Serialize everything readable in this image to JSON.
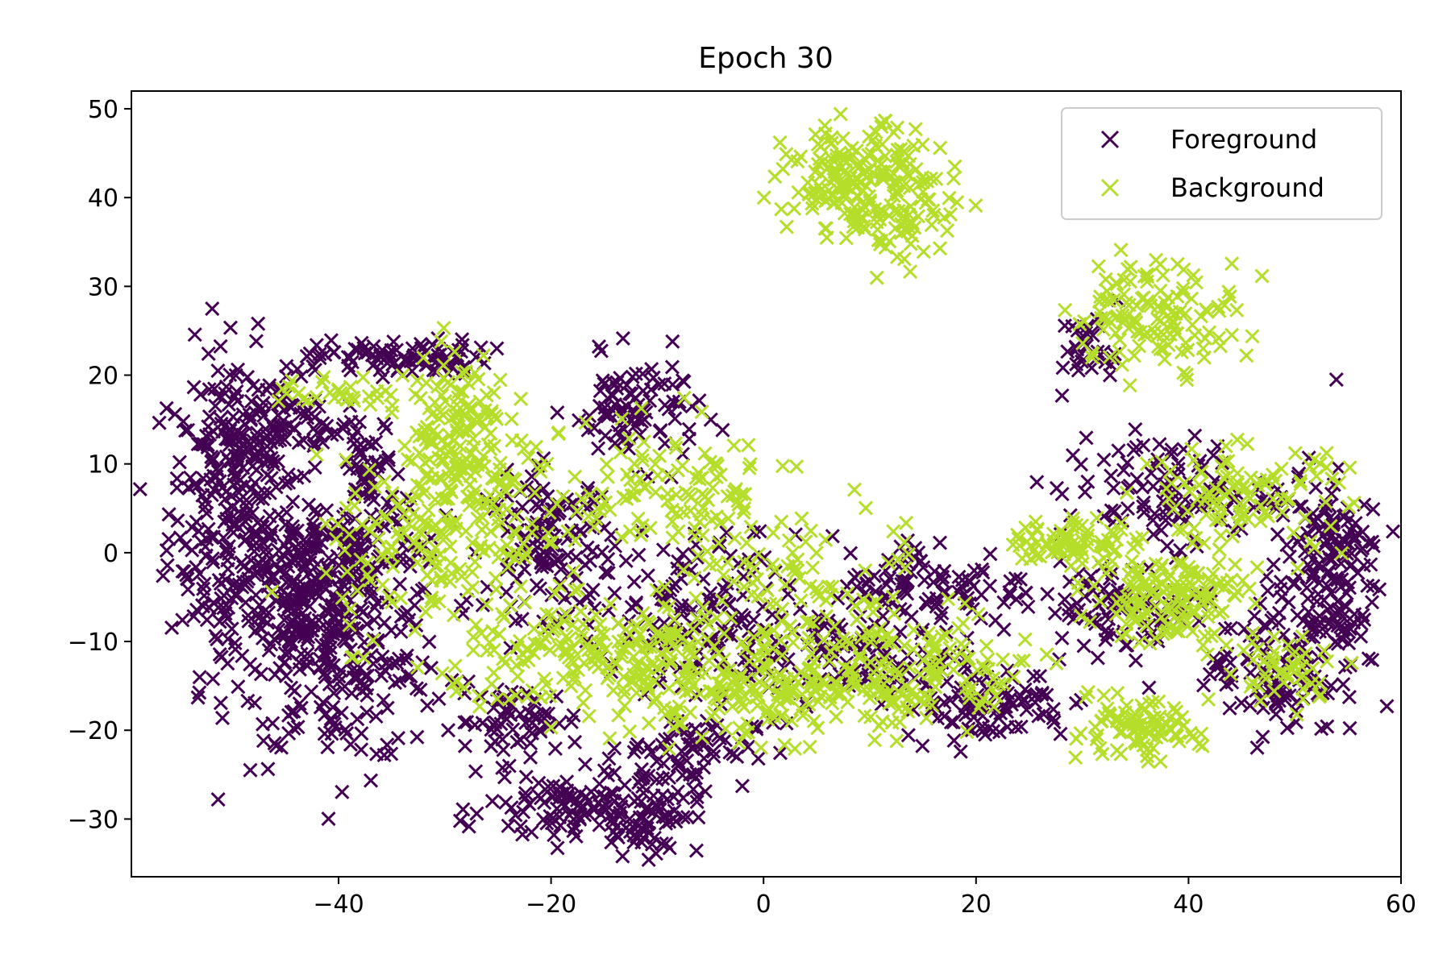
{
  "chart_data": {
    "type": "scatter",
    "title": "Epoch 30",
    "xlabel": "",
    "ylabel": "",
    "xlim": [
      -59.5,
      60
    ],
    "ylim": [
      -36.5,
      52
    ],
    "xticks": [
      -40,
      -20,
      0,
      20,
      40,
      60
    ],
    "yticks": [
      -30,
      -20,
      -10,
      0,
      10,
      20,
      30,
      40,
      50
    ],
    "xtick_labels": [
      "−40",
      "−20",
      "0",
      "20",
      "40",
      "60"
    ],
    "ytick_labels": [
      "−30",
      "−20",
      "−10",
      "0",
      "10",
      "20",
      "30",
      "40",
      "50"
    ],
    "grid": false,
    "legend_position": "top-right",
    "marker": "x",
    "series": [
      {
        "name": "Foreground",
        "color": "#440154",
        "clusters": [
          {
            "x": -50,
            "y": 5,
            "sx": 3,
            "sy": 9,
            "n": 260
          },
          {
            "x": -46,
            "y": 14,
            "sx": 4,
            "sy": 3,
            "n": 110
          },
          {
            "x": -40,
            "y": -10,
            "sx": 5,
            "sy": 7,
            "n": 300
          },
          {
            "x": -44,
            "y": -5,
            "sx": 3,
            "sy": 4,
            "n": 110
          },
          {
            "x": -34,
            "y": 22,
            "sx": 4,
            "sy": 1,
            "n": 90
          },
          {
            "x": -37,
            "y": 9,
            "sx": 1.5,
            "sy": 3,
            "n": 45
          },
          {
            "x": -40,
            "y": 1,
            "sx": 4,
            "sy": 2,
            "n": 80
          },
          {
            "x": -23,
            "y": -19,
            "sx": 3,
            "sy": 2,
            "n": 60
          },
          {
            "x": -20,
            "y": 1,
            "sx": 3,
            "sy": 4,
            "n": 130
          },
          {
            "x": -12,
            "y": 16,
            "sx": 3,
            "sy": 3,
            "n": 90
          },
          {
            "x": -18,
            "y": -29,
            "sx": 4,
            "sy": 2,
            "n": 100
          },
          {
            "x": -11,
            "y": -29,
            "sx": 2.5,
            "sy": 2.5,
            "n": 70
          },
          {
            "x": -7,
            "y": -22,
            "sx": 3,
            "sy": 2,
            "n": 60
          },
          {
            "x": -7,
            "y": -6,
            "sx": 5,
            "sy": 4,
            "n": 110
          },
          {
            "x": 5,
            "y": -12,
            "sx": 8,
            "sy": 3,
            "n": 140
          },
          {
            "x": 16,
            "y": -4,
            "sx": 5,
            "sy": 3,
            "n": 110
          },
          {
            "x": 21,
            "y": -17,
            "sx": 4,
            "sy": 2,
            "n": 90
          },
          {
            "x": 31,
            "y": -6,
            "sx": 3,
            "sy": 2,
            "n": 40
          },
          {
            "x": 31,
            "y": 23,
            "sx": 1.5,
            "sy": 2,
            "n": 30
          },
          {
            "x": 38,
            "y": 7,
            "sx": 5,
            "sy": 3,
            "n": 110
          },
          {
            "x": 53,
            "y": -2,
            "sx": 2.5,
            "sy": 6,
            "n": 170
          },
          {
            "x": 48,
            "y": -13,
            "sx": 3,
            "sy": 4,
            "n": 110
          },
          {
            "x": 36,
            "y": -6,
            "sx": 3,
            "sy": 3,
            "n": 50
          }
        ]
      },
      {
        "name": "Background",
        "color": "#b5de2b",
        "clusters": [
          {
            "x": -29,
            "y": 13,
            "sx": 2.5,
            "sy": 5,
            "n": 160
          },
          {
            "x": -40,
            "y": 18,
            "sx": 3,
            "sy": 1,
            "n": 30
          },
          {
            "x": -32,
            "y": 0,
            "sx": 5,
            "sy": 5,
            "n": 130
          },
          {
            "x": -15,
            "y": -12,
            "sx": 7,
            "sy": 3,
            "n": 200
          },
          {
            "x": 0,
            "y": -15,
            "sx": 6,
            "sy": 3,
            "n": 170
          },
          {
            "x": 14,
            "y": -14,
            "sx": 6,
            "sy": 3,
            "n": 130
          },
          {
            "x": -8,
            "y": 7,
            "sx": 5,
            "sy": 4,
            "n": 110
          },
          {
            "x": 2,
            "y": -4,
            "sx": 6,
            "sy": 5,
            "n": 100
          },
          {
            "x": 9,
            "y": 42,
            "sx": 3.5,
            "sy": 3,
            "n": 180
          },
          {
            "x": 14,
            "y": 38,
            "sx": 2.5,
            "sy": 3,
            "n": 50
          },
          {
            "x": 37,
            "y": 27,
            "sx": 4,
            "sy": 3,
            "n": 130
          },
          {
            "x": 29,
            "y": 1,
            "sx": 3,
            "sy": 1.5,
            "n": 80
          },
          {
            "x": 38,
            "y": -5,
            "sx": 3.5,
            "sy": 2.5,
            "n": 140
          },
          {
            "x": 35,
            "y": -20,
            "sx": 3,
            "sy": 1.5,
            "n": 90
          },
          {
            "x": 45,
            "y": 6,
            "sx": 5,
            "sy": 3,
            "n": 110
          },
          {
            "x": 49,
            "y": -13,
            "sx": 3,
            "sy": 2,
            "n": 50
          },
          {
            "x": -22,
            "y": 5,
            "sx": 4,
            "sy": 5,
            "n": 40
          }
        ]
      }
    ]
  }
}
